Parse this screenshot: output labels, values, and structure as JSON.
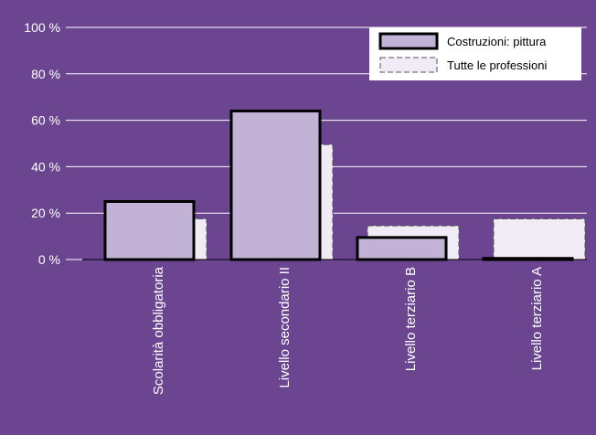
{
  "chart_data": {
    "type": "bar",
    "categories": [
      "Scolarità obbligatoria",
      "Livello secondario II",
      "Livello terziario B",
      "Livello terziario A"
    ],
    "series": [
      {
        "name": "Costruzioni: pittura",
        "values": [
          25,
          64,
          9.5,
          0.5
        ]
      },
      {
        "name": "Tutte le professioni",
        "values": [
          17.5,
          49.5,
          14.5,
          17.5
        ]
      }
    ],
    "ylim": [
      0,
      100
    ],
    "yticks": [
      0,
      20,
      40,
      60,
      80,
      100
    ],
    "ytick_suffix": " %",
    "grid": true,
    "legend": "top-right",
    "colors": {
      "background": "#6b4590",
      "plot_area": "#6b4590",
      "grid": "#ffffff",
      "series_1_fill": "#c1b2d6",
      "series_1_stroke": "#000000",
      "series_2_fill": "#f1ebf5",
      "series_2_stroke": "#555555",
      "tick_text": "#ffffff",
      "legend_background": "#ffffff",
      "legend_text": "#000000"
    }
  }
}
